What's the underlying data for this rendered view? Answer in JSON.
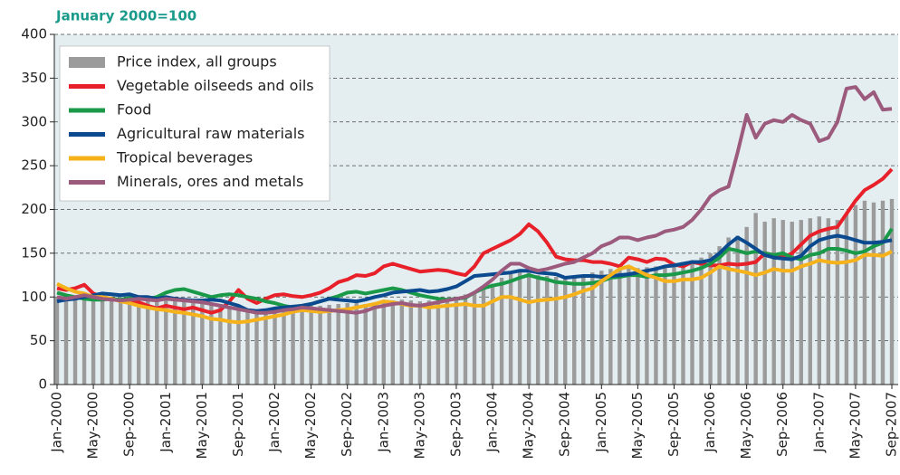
{
  "chart_data": {
    "type": "combo",
    "title": "January 2000=100",
    "categories": [
      "Jan-2000",
      null,
      null,
      null,
      "May-2000",
      null,
      null,
      null,
      "Sep-2000",
      null,
      null,
      null,
      "Jan-2001",
      null,
      null,
      null,
      "May-2001",
      null,
      null,
      null,
      "Sep-2001",
      null,
      null,
      null,
      "Jan-2002",
      null,
      null,
      null,
      "May-2002",
      null,
      null,
      null,
      "Sep-2002",
      null,
      null,
      null,
      "Jan-2003",
      null,
      null,
      null,
      "May-2003",
      null,
      null,
      null,
      "Sep-2003",
      null,
      null,
      null,
      "Jan-2004",
      null,
      null,
      null,
      "May-2004",
      null,
      null,
      null,
      "Sep-2004",
      null,
      null,
      null,
      "Jan-2005",
      null,
      null,
      null,
      "May-2005",
      null,
      null,
      null,
      "Sep-2005",
      null,
      null,
      null,
      "Jan-2006",
      null,
      null,
      null,
      "May-2006",
      null,
      null,
      null,
      "Sep-2006",
      null,
      null,
      null,
      "Jan-2007",
      null,
      null,
      null,
      "May-2007",
      null,
      null,
      null,
      "Sep-2007"
    ],
    "ylim": [
      0,
      400
    ],
    "yticks": [
      0,
      50,
      100,
      150,
      200,
      250,
      300,
      350,
      400
    ],
    "grid": true,
    "legend": "upper left",
    "series": [
      {
        "name": "Price index, all groups",
        "type": "bar",
        "color": "#9b9b9b",
        "values": [
          100,
          101,
          100,
          99,
          98,
          98,
          99,
          98,
          97,
          97,
          96,
          96,
          97,
          96,
          95,
          94,
          93,
          92,
          92,
          90,
          88,
          86,
          85,
          86,
          87,
          88,
          88,
          89,
          90,
          90,
          91,
          92,
          93,
          93,
          92,
          93,
          95,
          96,
          97,
          96,
          95,
          96,
          97,
          98,
          100,
          103,
          106,
          110,
          115,
          122,
          128,
          130,
          128,
          125,
          124,
          123,
          122,
          122,
          124,
          128,
          130,
          132,
          135,
          134,
          133,
          134,
          135,
          136,
          138,
          140,
          142,
          145,
          150,
          158,
          168,
          170,
          180,
          196,
          186,
          190,
          188,
          186,
          188,
          190,
          192,
          190,
          188,
          195,
          205,
          210,
          208,
          210,
          212
        ]
      },
      {
        "name": "Vegetable oilseeds and oils",
        "type": "line",
        "color": "#e8202a",
        "values": [
          110,
          108,
          110,
          114,
          104,
          100,
          98,
          96,
          95,
          94,
          90,
          87,
          90,
          88,
          86,
          88,
          85,
          82,
          85,
          95,
          108,
          98,
          93,
          98,
          102,
          103,
          101,
          100,
          102,
          105,
          110,
          117,
          120,
          125,
          124,
          127,
          135,
          138,
          135,
          132,
          129,
          130,
          131,
          130,
          127,
          125,
          135,
          150,
          155,
          160,
          165,
          172,
          183,
          175,
          162,
          146,
          143,
          142,
          142,
          140,
          140,
          138,
          135,
          145,
          143,
          140,
          144,
          143,
          137,
          135,
          140,
          138,
          136,
          136,
          138,
          137,
          138,
          140,
          150,
          148,
          145,
          150,
          160,
          170,
          175,
          178,
          180,
          195,
          210,
          222,
          228,
          235,
          246
        ]
      },
      {
        "name": "Food",
        "type": "line",
        "color": "#1a9a48",
        "values": [
          105,
          102,
          100,
          98,
          97,
          97,
          98,
          97,
          99,
          100,
          98,
          100,
          105,
          108,
          109,
          106,
          103,
          100,
          102,
          103,
          102,
          100,
          98,
          95,
          93,
          90,
          88,
          90,
          92,
          95,
          98,
          101,
          105,
          106,
          104,
          106,
          108,
          110,
          108,
          105,
          102,
          100,
          98,
          97,
          98,
          99,
          105,
          110,
          113,
          115,
          118,
          122,
          125,
          122,
          120,
          117,
          116,
          115,
          115,
          116,
          118,
          122,
          123,
          125,
          125,
          123,
          125,
          125,
          126,
          128,
          130,
          133,
          138,
          145,
          155,
          153,
          150,
          152,
          150,
          148,
          150,
          145,
          143,
          148,
          150,
          155,
          155,
          153,
          150,
          152,
          158,
          162,
          178
        ]
      },
      {
        "name": "Agricultural raw materials",
        "type": "line",
        "color": "#0b4a8f",
        "values": [
          95,
          97,
          98,
          100,
          102,
          104,
          103,
          102,
          103,
          100,
          100,
          98,
          100,
          98,
          97,
          96,
          96,
          97,
          96,
          93,
          90,
          85,
          84,
          85,
          87,
          88,
          89,
          90,
          92,
          95,
          98,
          97,
          96,
          95,
          97,
          100,
          102,
          105,
          106,
          107,
          108,
          106,
          107,
          109,
          112,
          118,
          124,
          125,
          126,
          127,
          128,
          130,
          130,
          128,
          127,
          126,
          122,
          123,
          124,
          124,
          123,
          124,
          125,
          126,
          128,
          130,
          132,
          135,
          136,
          138,
          140,
          140,
          142,
          150,
          160,
          168,
          162,
          155,
          148,
          145,
          144,
          143,
          147,
          158,
          165,
          168,
          170,
          168,
          165,
          162,
          162,
          163,
          165
        ]
      },
      {
        "name": "Tropical beverages",
        "type": "line",
        "color": "#f5b21b",
        "values": [
          115,
          110,
          106,
          104,
          100,
          100,
          98,
          95,
          93,
          90,
          88,
          86,
          85,
          83,
          82,
          80,
          78,
          75,
          74,
          72,
          71,
          72,
          74,
          76,
          78,
          80,
          83,
          85,
          84,
          83,
          84,
          85,
          86,
          88,
          90,
          92,
          95,
          94,
          92,
          90,
          90,
          88,
          89,
          90,
          91,
          92,
          90,
          90,
          95,
          100,
          100,
          97,
          94,
          96,
          97,
          98,
          100,
          103,
          107,
          110,
          118,
          125,
          132,
          135,
          130,
          125,
          122,
          118,
          118,
          120,
          120,
          122,
          128,
          135,
          132,
          130,
          128,
          125,
          128,
          132,
          130,
          130,
          135,
          138,
          142,
          140,
          139,
          140,
          142,
          148,
          148,
          147,
          152
        ]
      },
      {
        "name": "Minerals, ores and metals",
        "type": "line",
        "color": "#9c5a7d",
        "values": [
          100,
          98,
          100,
          102,
          100,
          98,
          97,
          96,
          97,
          98,
          97,
          96,
          98,
          97,
          96,
          95,
          94,
          92,
          90,
          88,
          86,
          84,
          82,
          82,
          83,
          85,
          86,
          88,
          87,
          86,
          85,
          84,
          83,
          82,
          84,
          88,
          90,
          92,
          93,
          91,
          90,
          92,
          94,
          96,
          98,
          100,
          105,
          112,
          120,
          130,
          138,
          138,
          133,
          130,
          132,
          135,
          138,
          140,
          145,
          150,
          158,
          162,
          168,
          168,
          165,
          168,
          170,
          175,
          177,
          180,
          188,
          200,
          215,
          222,
          226,
          265,
          308,
          282,
          298,
          302,
          300,
          308,
          302,
          298,
          278,
          282,
          300,
          338,
          340,
          326,
          334,
          314,
          315
        ]
      }
    ]
  }
}
